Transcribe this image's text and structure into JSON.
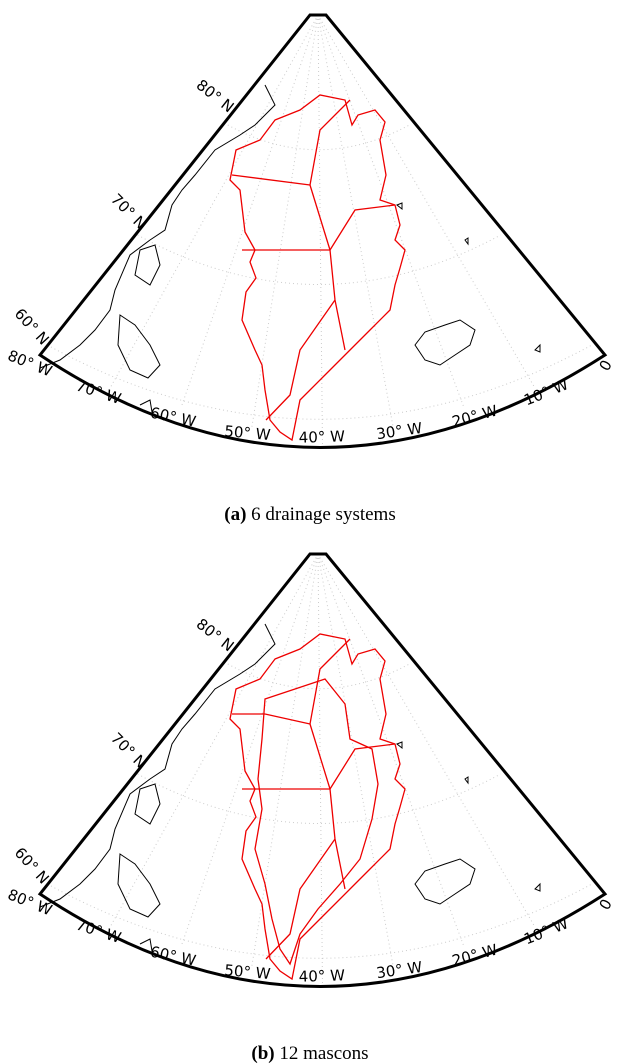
{
  "panels": [
    {
      "caption": {
        "label": "(a)",
        "text": "6 drainage systems"
      },
      "lat_labels": [
        "80° N",
        "70° N",
        "60° N"
      ],
      "lon_labels": [
        "80° W",
        "70° W",
        "60° W",
        "50° W",
        "40° W",
        "30° W",
        "20° W",
        "10° W",
        "0"
      ]
    },
    {
      "caption": {
        "label": "(b)",
        "text": "12 mascons"
      },
      "lat_labels": [
        "80° N",
        "70° N",
        "60° N"
      ],
      "lon_labels": [
        "80° W",
        "70° W",
        "60° W",
        "50° W",
        "40° W",
        "30° W",
        "20° W",
        "10° W",
        "0"
      ]
    }
  ]
}
